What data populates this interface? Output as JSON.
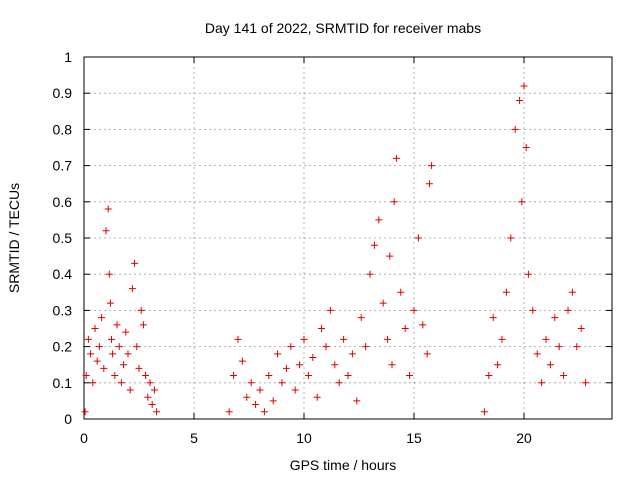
{
  "chart_data": {
    "type": "scatter",
    "title": "Day 141 of 2022, SRMTID for receiver mabs",
    "xlabel": "GPS time / hours",
    "ylabel": "SRMTID / TECUs",
    "xlim": [
      0,
      24
    ],
    "ylim": [
      0,
      1
    ],
    "xticks": [
      0,
      5,
      10,
      15,
      20
    ],
    "xtick_labels": [
      "0",
      "5",
      "10",
      "15",
      "20"
    ],
    "yticks": [
      0,
      0.1,
      0.2,
      0.3,
      0.4,
      0.5,
      0.6,
      0.7,
      0.8,
      0.9,
      1
    ],
    "ytick_labels": [
      "0",
      "0.1",
      "0.2",
      "0.3",
      "0.4",
      "0.5",
      "0.6",
      "0.7",
      "0.8",
      "0.9",
      "1"
    ],
    "grid": true,
    "marker": "+",
    "series": [
      {
        "name": "SRMTID",
        "color": "#e00000",
        "x": [
          0.05,
          0.1,
          0.2,
          0.3,
          0.4,
          0.5,
          0.6,
          0.7,
          0.8,
          0.9,
          1.0,
          1.1,
          1.15,
          1.2,
          1.25,
          1.3,
          1.4,
          1.5,
          1.6,
          1.7,
          1.8,
          1.9,
          2.0,
          2.1,
          2.2,
          2.3,
          2.4,
          2.5,
          2.6,
          2.7,
          2.8,
          2.9,
          3.0,
          3.1,
          3.2,
          3.3,
          6.6,
          6.8,
          7.0,
          7.2,
          7.4,
          7.6,
          7.8,
          8.0,
          8.2,
          8.4,
          8.6,
          8.8,
          9.0,
          9.2,
          9.4,
          9.6,
          9.8,
          10.0,
          10.2,
          10.4,
          10.6,
          10.8,
          11.0,
          11.2,
          11.4,
          11.6,
          11.8,
          12.0,
          12.2,
          12.4,
          12.6,
          12.8,
          13.0,
          13.2,
          13.4,
          13.6,
          13.8,
          13.9,
          14.0,
          14.1,
          14.2,
          14.4,
          14.6,
          14.8,
          15.0,
          15.2,
          15.4,
          15.6,
          15.7,
          15.8,
          18.2,
          18.4,
          18.6,
          18.8,
          19.0,
          19.2,
          19.4,
          19.6,
          19.8,
          19.9,
          20.0,
          20.1,
          20.2,
          20.4,
          20.6,
          20.8,
          21.0,
          21.2,
          21.4,
          21.6,
          21.8,
          22.0,
          22.2,
          22.4,
          22.6,
          22.8
        ],
        "y": [
          0.02,
          0.12,
          0.22,
          0.18,
          0.1,
          0.25,
          0.16,
          0.2,
          0.28,
          0.14,
          0.52,
          0.58,
          0.4,
          0.32,
          0.22,
          0.18,
          0.12,
          0.26,
          0.2,
          0.1,
          0.15,
          0.24,
          0.18,
          0.08,
          0.36,
          0.43,
          0.2,
          0.14,
          0.3,
          0.26,
          0.12,
          0.06,
          0.1,
          0.04,
          0.08,
          0.02,
          0.02,
          0.12,
          0.22,
          0.16,
          0.06,
          0.1,
          0.04,
          0.08,
          0.02,
          0.12,
          0.05,
          0.18,
          0.1,
          0.14,
          0.2,
          0.08,
          0.15,
          0.22,
          0.12,
          0.17,
          0.06,
          0.25,
          0.2,
          0.3,
          0.15,
          0.1,
          0.22,
          0.12,
          0.18,
          0.05,
          0.28,
          0.2,
          0.4,
          0.48,
          0.55,
          0.32,
          0.22,
          0.45,
          0.15,
          0.6,
          0.72,
          0.35,
          0.25,
          0.12,
          0.3,
          0.5,
          0.26,
          0.18,
          0.65,
          0.7,
          0.02,
          0.12,
          0.28,
          0.15,
          0.22,
          0.35,
          0.5,
          0.8,
          0.88,
          0.6,
          0.92,
          0.75,
          0.4,
          0.3,
          0.18,
          0.1,
          0.22,
          0.15,
          0.28,
          0.2,
          0.12,
          0.3,
          0.35,
          0.2,
          0.25,
          0.1
        ]
      }
    ]
  }
}
